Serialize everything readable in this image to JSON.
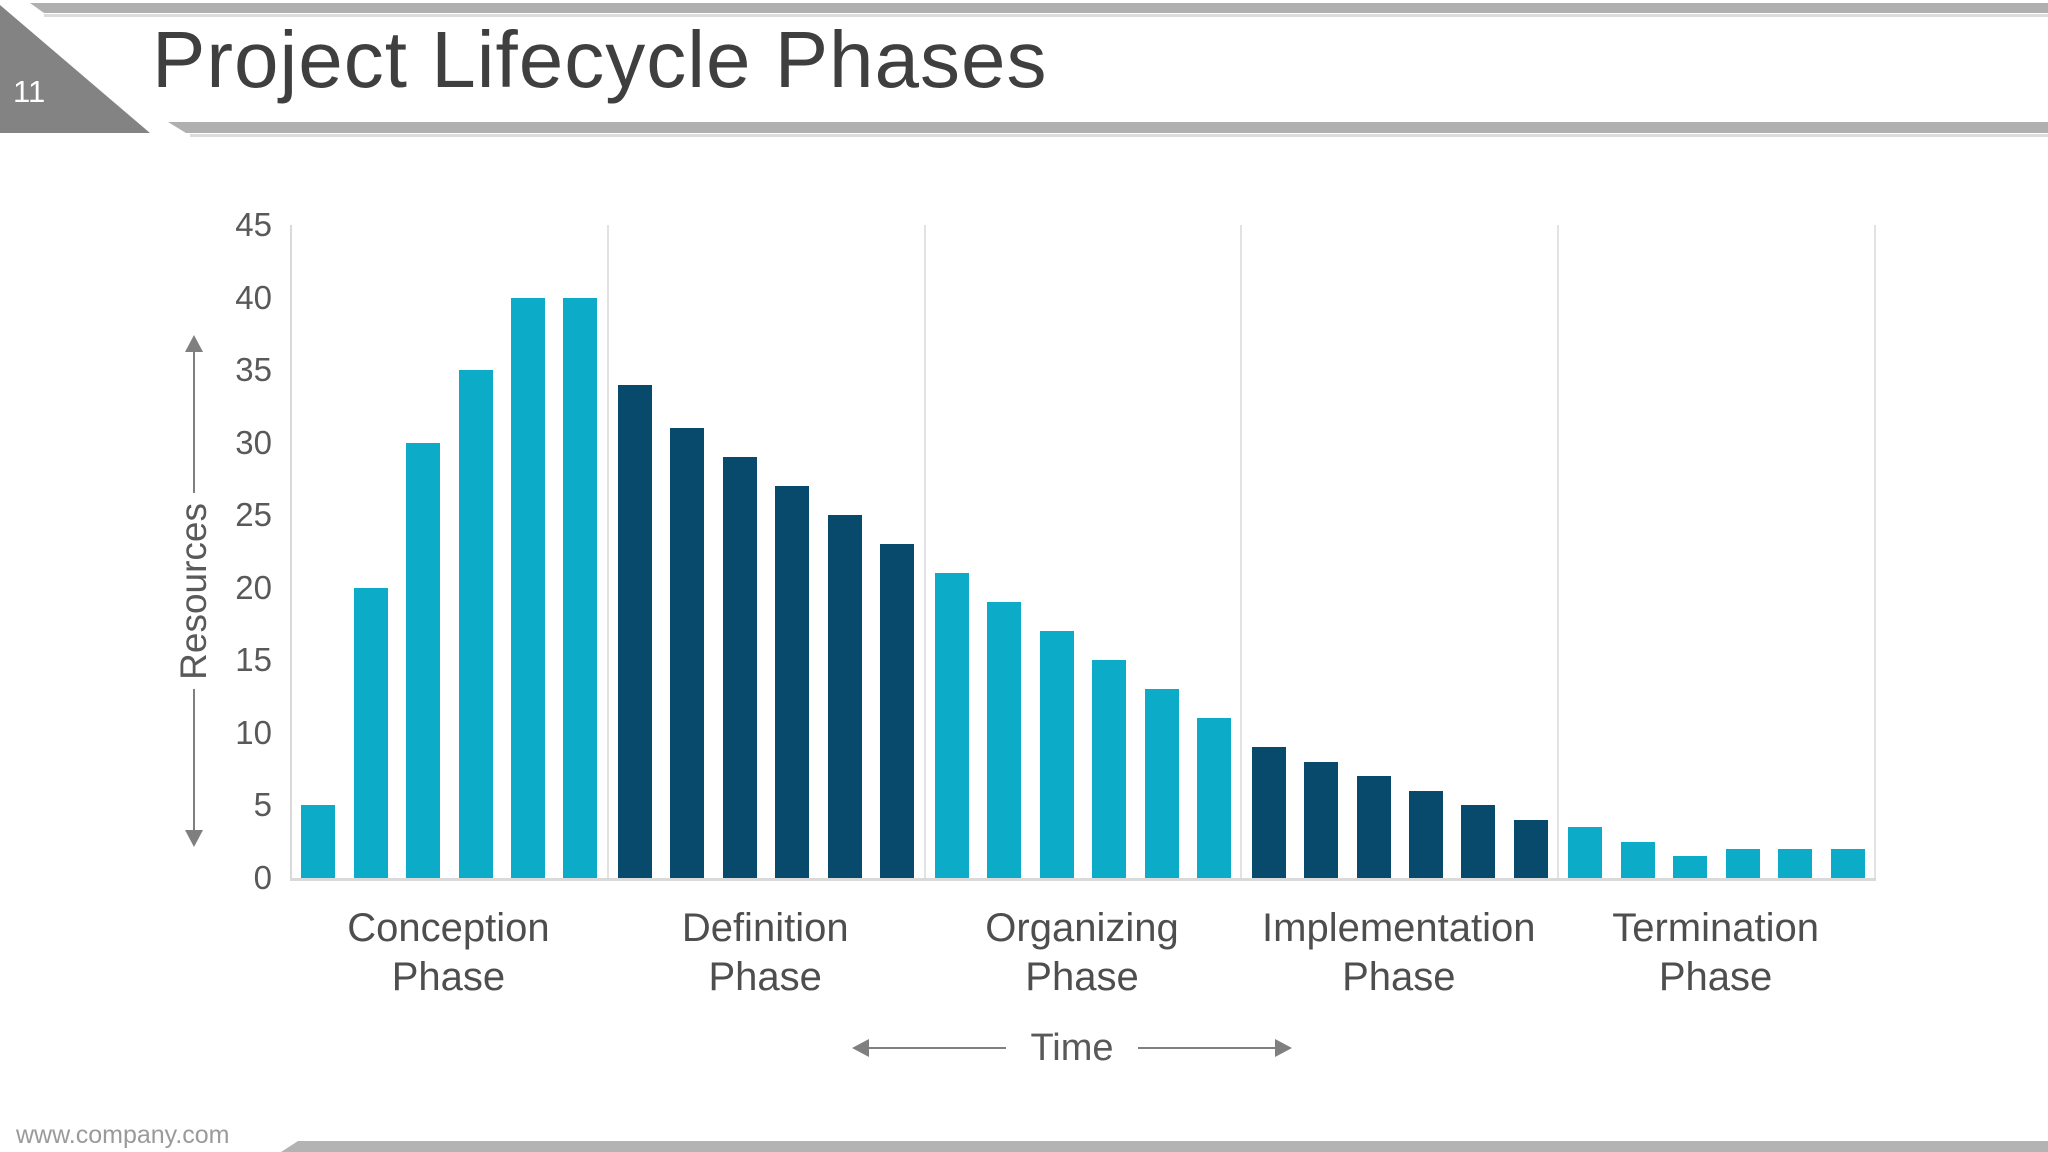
{
  "header": {
    "page_number": "11",
    "title": "Project Lifecycle Phases"
  },
  "footer": {
    "url": "www.company.com"
  },
  "colors": {
    "accent_cyan": "#0CACC8",
    "accent_navy": "#084A6C",
    "band_gray": "#B0B0B0",
    "triangle_gray": "#838383",
    "axis_line_gray": "#D9D9D9",
    "text_gray": "#595959",
    "title_gray": "#3F3F3F",
    "arrow_gray": "#7F7F7F"
  },
  "chart_data": {
    "type": "bar",
    "title": "Project Lifecycle Phases",
    "xlabel": "Time",
    "ylabel": "Resources",
    "ylim": [
      0,
      45
    ],
    "yticks": [
      0,
      5,
      10,
      15,
      20,
      25,
      30,
      35,
      40,
      45
    ],
    "grid": "vertical phase-divider lines only, light gray",
    "legend": "none",
    "categories": [
      "Conception Phase",
      "Definition Phase",
      "Organizing Phase",
      "Implementation Phase",
      "Termination Phase"
    ],
    "phases": [
      {
        "label_lines": [
          "Conception",
          "Phase"
        ],
        "color": "#0CACC8",
        "values": [
          5,
          20,
          30,
          35,
          40,
          40
        ]
      },
      {
        "label_lines": [
          "Definition",
          "Phase"
        ],
        "color": "#084A6C",
        "values": [
          34,
          31,
          29,
          27,
          25,
          23
        ]
      },
      {
        "label_lines": [
          "Organizing",
          "Phase"
        ],
        "color": "#0CACC8",
        "values": [
          21,
          19,
          17,
          15,
          13,
          11
        ]
      },
      {
        "label_lines": [
          "Implementation",
          "Phase"
        ],
        "color": "#084A6C",
        "values": [
          9,
          8,
          7,
          6,
          5,
          4
        ]
      },
      {
        "label_lines": [
          "Termination",
          "Phase"
        ],
        "color": "#0CACC8",
        "values": [
          3.5,
          2.5,
          1.5,
          2,
          2,
          2
        ]
      }
    ]
  }
}
